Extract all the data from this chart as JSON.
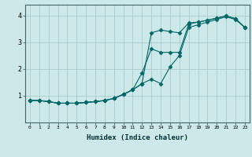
{
  "xlabel": "Humidex (Indice chaleur)",
  "ylabel": "",
  "bg_color": "#cce8e8",
  "grid_color": "#aacccc",
  "line_color": "#006666",
  "xlim": [
    -0.5,
    23.5
  ],
  "ylim": [
    0.0,
    4.4
  ],
  "xticks": [
    0,
    1,
    2,
    3,
    4,
    5,
    6,
    7,
    8,
    9,
    10,
    11,
    12,
    13,
    14,
    15,
    16,
    17,
    18,
    19,
    20,
    21,
    22,
    23
  ],
  "yticks": [
    1,
    2,
    3,
    4
  ],
  "line1_x": [
    0,
    1,
    2,
    3,
    4,
    5,
    6,
    7,
    8,
    9,
    10,
    11,
    12,
    13,
    14,
    15,
    16,
    17,
    18,
    19,
    20,
    21,
    22,
    23
  ],
  "line1_y": [
    0.82,
    0.82,
    0.78,
    0.72,
    0.72,
    0.72,
    0.75,
    0.78,
    0.82,
    0.9,
    1.05,
    1.22,
    1.45,
    1.62,
    1.45,
    2.08,
    2.5,
    3.55,
    3.65,
    3.75,
    3.85,
    3.95,
    3.85,
    3.55
  ],
  "line2_x": [
    0,
    1,
    2,
    3,
    4,
    5,
    6,
    7,
    8,
    9,
    10,
    11,
    12,
    13,
    14,
    15,
    16,
    17,
    18,
    19,
    20,
    21,
    22,
    23
  ],
  "line2_y": [
    0.82,
    0.82,
    0.78,
    0.72,
    0.72,
    0.72,
    0.75,
    0.78,
    0.82,
    0.9,
    1.05,
    1.22,
    1.85,
    2.75,
    2.62,
    2.62,
    2.62,
    3.68,
    3.75,
    3.82,
    3.9,
    3.98,
    3.88,
    3.55
  ],
  "line3_x": [
    0,
    1,
    2,
    3,
    4,
    5,
    6,
    7,
    8,
    9,
    10,
    11,
    12,
    13,
    14,
    15,
    16,
    17,
    18,
    19,
    20,
    21,
    22,
    23
  ],
  "line3_y": [
    0.82,
    0.82,
    0.78,
    0.72,
    0.72,
    0.72,
    0.75,
    0.78,
    0.82,
    0.9,
    1.05,
    1.22,
    1.45,
    3.35,
    3.45,
    3.4,
    3.35,
    3.72,
    3.75,
    3.82,
    3.9,
    3.98,
    3.88,
    3.55
  ]
}
